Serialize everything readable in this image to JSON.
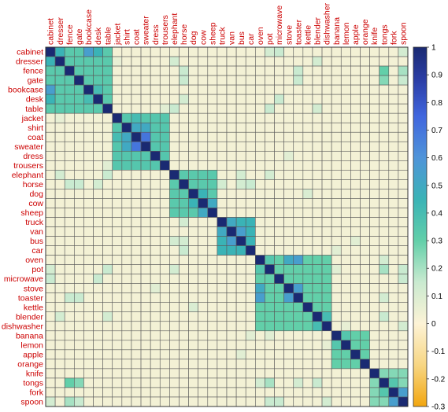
{
  "chart_data": {
    "type": "heatmap",
    "title": "",
    "xlabel": "",
    "ylabel": "",
    "label_color": "#cc0000",
    "labels": [
      "cabinet",
      "dresser",
      "fence",
      "gate",
      "bookcase",
      "desk",
      "table",
      "jacket",
      "shirt",
      "coat",
      "sweater",
      "dress",
      "trousers",
      "elephant",
      "horse",
      "dog",
      "cow",
      "sheep",
      "truck",
      "van",
      "bus",
      "car",
      "oven",
      "pot",
      "microwave",
      "stove",
      "toaster",
      "kettle",
      "blender",
      "dishwasher",
      "banana",
      "lemon",
      "apple",
      "orange",
      "knife",
      "tongs",
      "fork",
      "spoon"
    ],
    "groups": [
      {
        "start": 0,
        "end": 6,
        "value": 0.33
      },
      {
        "start": 7,
        "end": 12,
        "value": 0.35
      },
      {
        "start": 13,
        "end": 17,
        "value": 0.33
      },
      {
        "start": 18,
        "end": 21,
        "value": 0.45
      },
      {
        "start": 22,
        "end": 29,
        "value": 0.3
      },
      {
        "start": 30,
        "end": 33,
        "value": 0.3
      },
      {
        "start": 34,
        "end": 37,
        "value": 0.25
      }
    ],
    "overrides": [
      {
        "i": 0,
        "j": 4,
        "value": 0.55
      },
      {
        "i": 0,
        "j": 1,
        "value": 0.45
      },
      {
        "i": 0,
        "j": 5,
        "value": 0.45
      },
      {
        "i": 4,
        "j": 5,
        "value": 0.4
      },
      {
        "i": 9,
        "j": 10,
        "value": 0.7
      },
      {
        "i": 8,
        "j": 9,
        "value": 0.5
      },
      {
        "i": 8,
        "j": 10,
        "value": 0.5
      },
      {
        "i": 7,
        "j": 9,
        "value": 0.4
      },
      {
        "i": 15,
        "j": 16,
        "value": 0.45
      },
      {
        "i": 16,
        "j": 17,
        "value": 0.5
      },
      {
        "i": 19,
        "j": 20,
        "value": 0.55
      },
      {
        "i": 18,
        "j": 19,
        "value": 0.5
      },
      {
        "i": 22,
        "j": 25,
        "value": 0.5
      },
      {
        "i": 22,
        "j": 26,
        "value": 0.55
      },
      {
        "i": 25,
        "j": 26,
        "value": 0.55
      },
      {
        "i": 22,
        "j": 23,
        "value": 0.35
      },
      {
        "i": 28,
        "j": 29,
        "value": 0.4
      },
      {
        "i": 30,
        "j": 31,
        "value": 0.35
      },
      {
        "i": 36,
        "j": 37,
        "value": 0.55
      },
      {
        "i": 35,
        "j": 36,
        "value": 0.35
      }
    ],
    "cross_values": [
      {
        "i": 2,
        "j": 35,
        "value": 0.3
      },
      {
        "i": 3,
        "j": 35,
        "value": 0.25
      },
      {
        "i": 2,
        "j": 26,
        "value": 0.15
      },
      {
        "i": 3,
        "j": 26,
        "value": 0.15
      },
      {
        "i": 0,
        "j": 24,
        "value": 0.15
      },
      {
        "i": 5,
        "j": 24,
        "value": 0.15
      },
      {
        "i": 0,
        "j": 37,
        "value": 0.12
      },
      {
        "i": 6,
        "j": 23,
        "value": 0.15
      },
      {
        "i": 6,
        "j": 28,
        "value": 0.12
      },
      {
        "i": 1,
        "j": 28,
        "value": 0.12
      },
      {
        "i": 1,
        "j": 13,
        "value": 0.12
      },
      {
        "i": 2,
        "j": 14,
        "value": 0.15
      },
      {
        "i": 3,
        "j": 14,
        "value": 0.15
      },
      {
        "i": 6,
        "j": 13,
        "value": 0.15
      },
      {
        "i": 5,
        "j": 14,
        "value": 0.12
      },
      {
        "i": 13,
        "j": 23,
        "value": 0.12
      },
      {
        "i": 15,
        "j": 27,
        "value": 0.1
      },
      {
        "i": 20,
        "j": 32,
        "value": 0.08
      },
      {
        "i": 11,
        "j": 25,
        "value": 0.08
      },
      {
        "i": 23,
        "j": 35,
        "value": 0.2
      },
      {
        "i": 23,
        "j": 37,
        "value": 0.15
      },
      {
        "i": 24,
        "j": 37,
        "value": 0.15
      },
      {
        "i": 28,
        "j": 35,
        "value": 0.15
      },
      {
        "i": 29,
        "j": 37,
        "value": 0.12
      },
      {
        "i": 26,
        "j": 35,
        "value": 0.12
      },
      {
        "i": 22,
        "j": 35,
        "value": 0.12
      },
      {
        "i": 2,
        "j": 37,
        "value": 0.2
      },
      {
        "i": 3,
        "j": 37,
        "value": 0.15
      },
      {
        "i": 0,
        "j": 23,
        "value": 0.12
      },
      {
        "i": 14,
        "j": 21,
        "value": 0.15
      },
      {
        "i": 13,
        "j": 20,
        "value": 0.12
      },
      {
        "i": 14,
        "j": 20,
        "value": 0.12
      },
      {
        "i": 18,
        "j": 14,
        "value": 0.12
      },
      {
        "i": 21,
        "j": 30,
        "value": 0.08
      },
      {
        "i": 30,
        "j": 23,
        "value": 0.08
      },
      {
        "i": 31,
        "j": 29,
        "value": 0.06
      },
      {
        "i": 7,
        "j": 1,
        "value": 0.06
      },
      {
        "i": 12,
        "j": 6,
        "value": 0.08
      }
    ],
    "background_value": 0.03,
    "diagonal_value": 1.0,
    "colorbar": {
      "min": -0.3,
      "max": 1.0,
      "ticks": [
        "1",
        "0.9",
        "0.8",
        "0.7",
        "0.6",
        "0.5",
        "0.4",
        "0.3",
        "0.2",
        "0.1",
        "0",
        "-0.1",
        "-0.2",
        "-0.3"
      ],
      "stops": [
        {
          "v": -0.3,
          "color": "#f2a60f"
        },
        {
          "v": -0.15,
          "color": "#f7d683"
        },
        {
          "v": 0.0,
          "color": "#fdf3d6"
        },
        {
          "v": 0.15,
          "color": "#c9ead0"
        },
        {
          "v": 0.3,
          "color": "#62cfa9"
        },
        {
          "v": 0.45,
          "color": "#3ab3b6"
        },
        {
          "v": 0.6,
          "color": "#4f94d9"
        },
        {
          "v": 0.75,
          "color": "#4066de"
        },
        {
          "v": 0.88,
          "color": "#2b3ea6"
        },
        {
          "v": 1.0,
          "color": "#1a2a72"
        }
      ]
    },
    "grid": true,
    "legend": "right"
  }
}
